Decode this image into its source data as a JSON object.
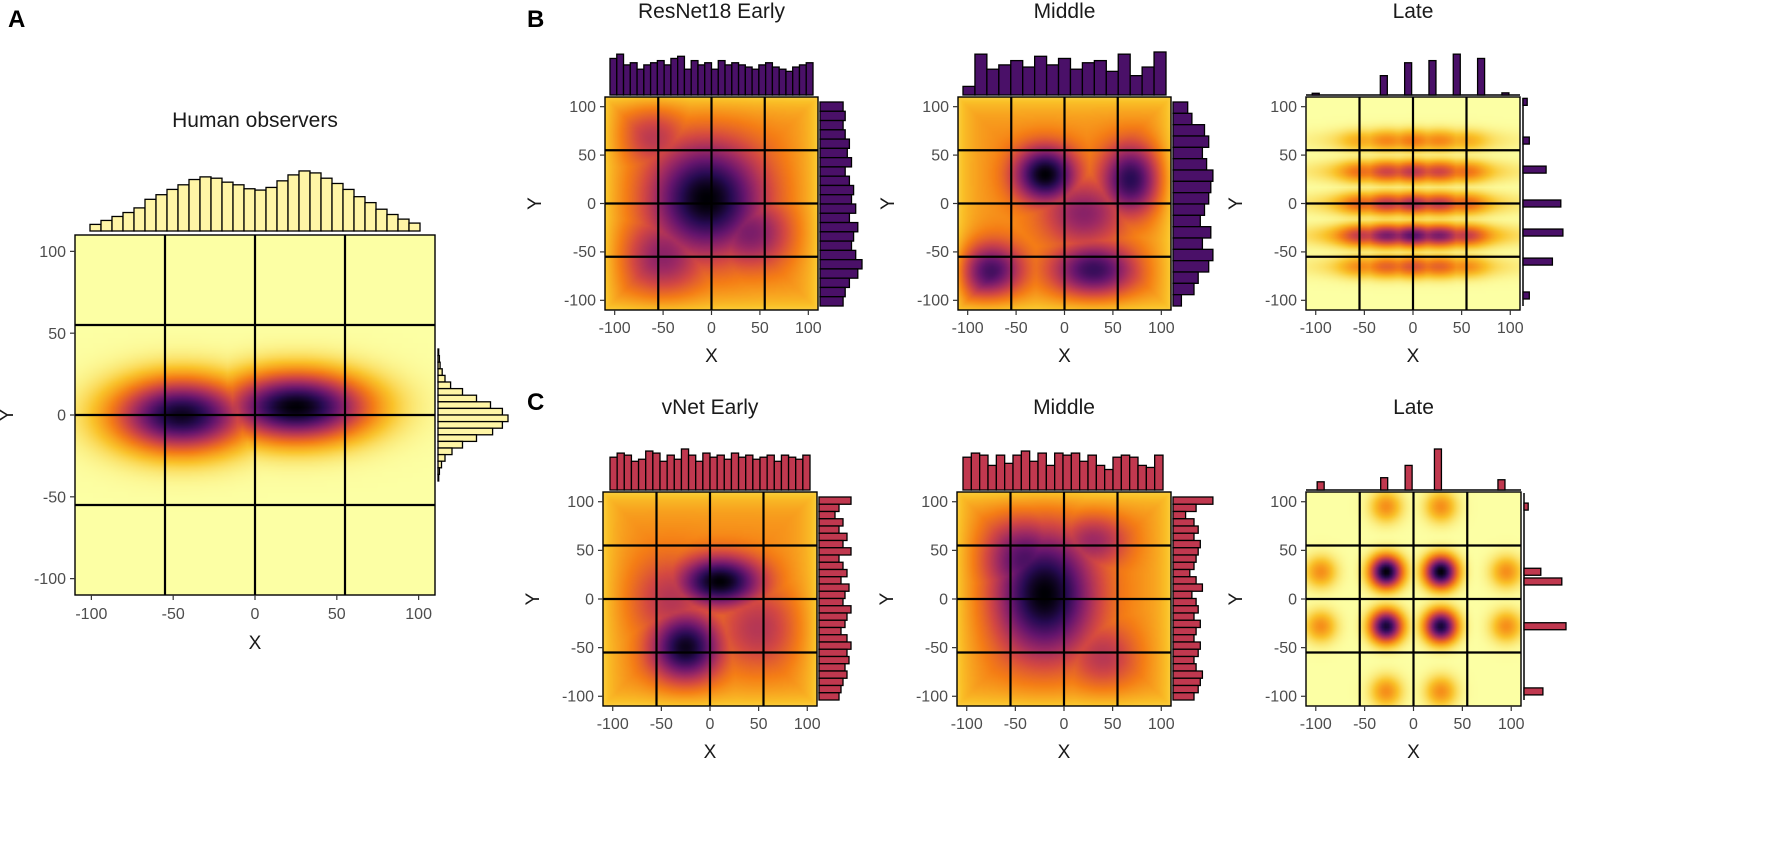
{
  "figure": {
    "labels": {
      "A": "A",
      "B": "B",
      "C": "C"
    },
    "colors": {
      "human": "#fff5a6",
      "resnet": "#4a1068",
      "vnet": "#c0384f",
      "grid": "#000000",
      "colormap": [
        "#fcffa4",
        "#fac228",
        "#f57d15",
        "#d44842",
        "#9f2a63",
        "#65156e",
        "#280b54",
        "#000004"
      ]
    }
  },
  "chart_data": [
    {
      "id": "A",
      "type": "heatmap",
      "title": "Human observers",
      "xlabel": "X",
      "ylabel": "Y",
      "xlim": [
        -110,
        110
      ],
      "ylim": [
        -110,
        110
      ],
      "xticks": [
        -100,
        -50,
        0,
        50,
        100
      ],
      "yticks": [
        -100,
        -50,
        0,
        50,
        100
      ],
      "tick_labels": [
        "-100",
        "-50",
        "0",
        "50",
        "100"
      ],
      "grid_lines": [
        -55,
        0,
        55
      ],
      "histogram_color": "#fff5a6",
      "density_peaks": [
        {
          "x": -45,
          "y": 0,
          "sx": 28,
          "sy": 15,
          "w": 0.95
        },
        {
          "x": 25,
          "y": 5,
          "sx": 30,
          "sy": 14,
          "w": 1.0
        }
      ],
      "x_marginal": [
        0.1,
        0.16,
        0.22,
        0.28,
        0.35,
        0.48,
        0.55,
        0.63,
        0.7,
        0.78,
        0.82,
        0.8,
        0.74,
        0.7,
        0.64,
        0.62,
        0.66,
        0.76,
        0.85,
        0.91,
        0.88,
        0.8,
        0.72,
        0.63,
        0.52,
        0.43,
        0.33,
        0.25,
        0.18,
        0.12
      ],
      "y_marginal": [
        0.0,
        0.0,
        0.0,
        0.0,
        0.0,
        0.0,
        0.0,
        0.0,
        0.0,
        0.0,
        0.0,
        0.0,
        0.0,
        0.0,
        0.0,
        0.01,
        0.02,
        0.03,
        0.06,
        0.1,
        0.18,
        0.35,
        0.55,
        0.75,
        0.92,
        1.0,
        0.92,
        0.78,
        0.55,
        0.35,
        0.2,
        0.1,
        0.05,
        0.02,
        0.01,
        0.0,
        0.0,
        0.0,
        0.0,
        0.0,
        0.0,
        0.0,
        0.0,
        0.0,
        0.0,
        0.0,
        0.0,
        0.0,
        0.0,
        0.0
      ]
    },
    {
      "id": "B1",
      "type": "heatmap",
      "title": "ResNet18 Early",
      "xlabel": "X",
      "ylabel": "Y",
      "xlim": [
        -110,
        110
      ],
      "ylim": [
        -110,
        110
      ],
      "xticks": [
        -100,
        -50,
        0,
        50,
        100
      ],
      "yticks": [
        -100,
        -50,
        0,
        50,
        100
      ],
      "tick_labels": [
        "-100",
        "-50",
        "0",
        "50",
        "100"
      ],
      "grid_lines": [
        -55,
        0,
        55
      ],
      "histogram_color": "#4a1068",
      "density_peaks": [
        {
          "x": -5,
          "y": 5,
          "sx": 40,
          "sy": 40,
          "w": 1.0
        },
        {
          "x": 40,
          "y": -30,
          "sx": 30,
          "sy": 25,
          "w": 0.55
        },
        {
          "x": -50,
          "y": -55,
          "sx": 30,
          "sy": 30,
          "w": 0.5
        },
        {
          "x": -60,
          "y": 70,
          "sx": 25,
          "sy": 25,
          "w": 0.35
        }
      ],
      "x_marginal": [
        0.85,
        0.95,
        0.7,
        0.75,
        0.6,
        0.7,
        0.75,
        0.8,
        0.7,
        0.85,
        0.9,
        0.6,
        0.8,
        0.7,
        0.75,
        0.6,
        0.8,
        0.7,
        0.75,
        0.7,
        0.65,
        0.6,
        0.7,
        0.75,
        0.65,
        0.6,
        0.55,
        0.65,
        0.7,
        0.75
      ],
      "y_marginal": [
        0.55,
        0.6,
        0.55,
        0.6,
        0.7,
        0.65,
        0.75,
        0.6,
        0.7,
        0.8,
        0.75,
        0.85,
        0.7,
        0.9,
        0.8,
        0.75,
        0.85,
        1.0,
        0.9,
        0.7,
        0.6,
        0.55
      ]
    },
    {
      "id": "B2",
      "type": "heatmap",
      "title": "Middle",
      "xlabel": "X",
      "ylabel": "Y",
      "xlim": [
        -110,
        110
      ],
      "ylim": [
        -110,
        110
      ],
      "xticks": [
        -100,
        -50,
        0,
        50,
        100
      ],
      "yticks": [
        -100,
        -50,
        0,
        50,
        100
      ],
      "tick_labels": [
        "-100",
        "-50",
        "0",
        "50",
        "100"
      ],
      "grid_lines": [
        -55,
        0,
        55
      ],
      "histogram_color": "#4a1068",
      "density_peaks": [
        {
          "x": -20,
          "y": 30,
          "sx": 22,
          "sy": 20,
          "w": 1.0
        },
        {
          "x": 70,
          "y": 25,
          "sx": 22,
          "sy": 25,
          "w": 0.85
        },
        {
          "x": -80,
          "y": -70,
          "sx": 25,
          "sy": 20,
          "w": 0.8
        },
        {
          "x": 30,
          "y": -70,
          "sx": 30,
          "sy": 20,
          "w": 0.8
        },
        {
          "x": 20,
          "y": -10,
          "sx": 30,
          "sy": 25,
          "w": 0.5
        }
      ],
      "x_marginal": [
        0.2,
        0.95,
        0.6,
        0.7,
        0.8,
        0.65,
        0.9,
        0.7,
        0.85,
        0.6,
        0.75,
        0.8,
        0.55,
        0.95,
        0.45,
        0.65,
        1.0
      ],
      "y_marginal": [
        0.35,
        0.45,
        0.75,
        0.85,
        0.7,
        0.8,
        0.95,
        0.9,
        0.85,
        0.75,
        0.65,
        0.9,
        0.7,
        0.95,
        0.85,
        0.6,
        0.5,
        0.2
      ]
    },
    {
      "id": "B3",
      "type": "heatmap",
      "title": "Late",
      "xlabel": "X",
      "ylabel": "Y",
      "xlim": [
        -110,
        110
      ],
      "ylim": [
        -110,
        110
      ],
      "xticks": [
        -100,
        -50,
        0,
        50,
        100
      ],
      "yticks": [
        -100,
        -50,
        0,
        50,
        100
      ],
      "tick_labels": [
        "-100",
        "-50",
        "0",
        "50",
        "100"
      ],
      "grid_lines": [
        -55,
        0,
        55
      ],
      "histogram_color": "#4a1068",
      "density_rows": [
        {
          "y": -65,
          "w": 0.4
        },
        {
          "y": -33,
          "w": 0.75
        },
        {
          "y": 0,
          "w": 0.55
        },
        {
          "y": 33,
          "w": 0.5
        },
        {
          "y": 65,
          "w": 0.3
        }
      ],
      "density_cols": [
        -60,
        -30,
        0,
        30,
        60
      ],
      "x_marginal_bins": [
        {
          "x": -100,
          "v": 0.04
        },
        {
          "x": -30,
          "v": 0.45
        },
        {
          "x": -5,
          "v": 0.75
        },
        {
          "x": 20,
          "v": 0.8
        },
        {
          "x": 45,
          "v": 0.95
        },
        {
          "x": 70,
          "v": 0.85
        },
        {
          "x": 95,
          "v": 0.05
        }
      ],
      "y_marginal_bins": [
        {
          "y": 105,
          "v": 0.1
        },
        {
          "y": 65,
          "v": 0.15
        },
        {
          "y": 35,
          "v": 0.55
        },
        {
          "y": 0,
          "v": 0.9
        },
        {
          "y": -30,
          "v": 0.95
        },
        {
          "y": -60,
          "v": 0.7
        },
        {
          "y": -95,
          "v": 0.15
        }
      ]
    },
    {
      "id": "C1",
      "type": "heatmap",
      "title": "vNet Early",
      "xlabel": "X",
      "ylabel": "Y",
      "xlim": [
        -110,
        110
      ],
      "ylim": [
        -110,
        110
      ],
      "xticks": [
        -100,
        -50,
        0,
        50,
        100
      ],
      "yticks": [
        -100,
        -50,
        0,
        50,
        100
      ],
      "tick_labels": [
        "-100",
        "-50",
        "0",
        "50",
        "100"
      ],
      "grid_lines": [
        -55,
        0,
        55
      ],
      "histogram_color": "#c0384f",
      "density_peaks": [
        {
          "x": 10,
          "y": 18,
          "sx": 30,
          "sy": 18,
          "w": 1.0
        },
        {
          "x": -25,
          "y": -50,
          "sx": 25,
          "sy": 25,
          "w": 0.95
        },
        {
          "x": -40,
          "y": 0,
          "sx": 30,
          "sy": 30,
          "w": 0.35
        },
        {
          "x": 50,
          "y": -30,
          "sx": 30,
          "sy": 30,
          "w": 0.35
        }
      ],
      "x_marginal": [
        0.8,
        0.9,
        0.85,
        0.7,
        0.75,
        0.95,
        0.9,
        0.7,
        0.85,
        0.75,
        1.0,
        0.85,
        0.7,
        0.9,
        0.8,
        0.85,
        0.75,
        0.9,
        0.8,
        0.85,
        0.75,
        0.8,
        0.85,
        0.7,
        0.85,
        0.8,
        0.75,
        0.85
      ],
      "y_marginal": [
        0.8,
        0.5,
        0.4,
        0.6,
        0.5,
        0.7,
        0.6,
        0.8,
        0.5,
        0.6,
        0.7,
        0.55,
        0.75,
        0.65,
        0.6,
        0.8,
        0.7,
        0.65,
        0.55,
        0.7,
        0.8,
        0.7,
        0.75,
        0.65,
        0.7,
        0.6,
        0.55,
        0.5
      ]
    },
    {
      "id": "C2",
      "type": "heatmap",
      "title": "Middle",
      "xlabel": "X",
      "ylabel": "Y",
      "xlim": [
        -110,
        110
      ],
      "ylim": [
        -110,
        110
      ],
      "xticks": [
        -100,
        -50,
        0,
        50,
        100
      ],
      "yticks": [
        -100,
        -50,
        0,
        50,
        100
      ],
      "tick_labels": [
        "-100",
        "-50",
        "0",
        "50",
        "100"
      ],
      "grid_lines": [
        -55,
        0,
        55
      ],
      "histogram_color": "#c0384f",
      "density_peaks": [
        {
          "x": -20,
          "y": 5,
          "sx": 35,
          "sy": 45,
          "w": 1.0
        },
        {
          "x": -40,
          "y": 40,
          "sx": 30,
          "sy": 30,
          "w": 0.7
        },
        {
          "x": 30,
          "y": 60,
          "sx": 25,
          "sy": 20,
          "w": 0.45
        },
        {
          "x": 40,
          "y": -60,
          "sx": 25,
          "sy": 25,
          "w": 0.35
        }
      ],
      "x_marginal": [
        0.8,
        0.9,
        0.85,
        0.6,
        0.85,
        0.65,
        0.85,
        0.95,
        0.7,
        0.9,
        0.6,
        0.9,
        0.85,
        0.9,
        0.7,
        0.85,
        0.6,
        0.5,
        0.8,
        0.85,
        0.8,
        0.6,
        0.55,
        0.85
      ],
      "y_marginal": [
        0.95,
        0.55,
        0.3,
        0.5,
        0.6,
        0.5,
        0.65,
        0.6,
        0.55,
        0.5,
        0.4,
        0.55,
        0.7,
        0.45,
        0.55,
        0.6,
        0.5,
        0.65,
        0.55,
        0.5,
        0.65,
        0.6,
        0.5,
        0.55,
        0.7,
        0.65,
        0.6,
        0.5
      ]
    },
    {
      "id": "C3",
      "type": "heatmap",
      "title": "Late",
      "xlabel": "X",
      "ylabel": "Y",
      "xlim": [
        -110,
        110
      ],
      "ylim": [
        -110,
        110
      ],
      "xticks": [
        -100,
        -50,
        0,
        50,
        100
      ],
      "yticks": [
        -100,
        -50,
        0,
        50,
        100
      ],
      "tick_labels": [
        "-100",
        "-50",
        "0",
        "50",
        "100"
      ],
      "grid_lines": [
        -55,
        0,
        55
      ],
      "histogram_color": "#c0384f",
      "density_spots": [
        {
          "x": -28,
          "y": 28,
          "w": 1.0,
          "s": 11
        },
        {
          "x": 28,
          "y": 28,
          "w": 1.0,
          "s": 11
        },
        {
          "x": -28,
          "y": -28,
          "w": 0.92,
          "s": 11
        },
        {
          "x": 28,
          "y": -28,
          "w": 0.92,
          "s": 11
        },
        {
          "x": -95,
          "y": -28,
          "w": 0.25,
          "s": 11
        },
        {
          "x": 95,
          "y": -28,
          "w": 0.25,
          "s": 11
        },
        {
          "x": -95,
          "y": 28,
          "w": 0.25,
          "s": 11
        },
        {
          "x": 95,
          "y": 28,
          "w": 0.25,
          "s": 11
        },
        {
          "x": -28,
          "y": 95,
          "w": 0.25,
          "s": 11
        },
        {
          "x": 28,
          "y": 95,
          "w": 0.25,
          "s": 11
        },
        {
          "x": -28,
          "y": -95,
          "w": 0.25,
          "s": 11
        },
        {
          "x": 28,
          "y": -95,
          "w": 0.25,
          "s": 11
        }
      ],
      "x_marginal_bins": [
        {
          "x": -95,
          "v": 0.2
        },
        {
          "x": -30,
          "v": 0.3
        },
        {
          "x": -5,
          "v": 0.6
        },
        {
          "x": 25,
          "v": 1.0
        },
        {
          "x": 90,
          "v": 0.25
        }
      ],
      "y_marginal_bins": [
        {
          "y": 95,
          "v": 0.1
        },
        {
          "y": 28,
          "v": 0.4
        },
        {
          "y": 18,
          "v": 0.9
        },
        {
          "y": -28,
          "v": 1.0
        },
        {
          "y": -95,
          "v": 0.45
        }
      ]
    }
  ]
}
